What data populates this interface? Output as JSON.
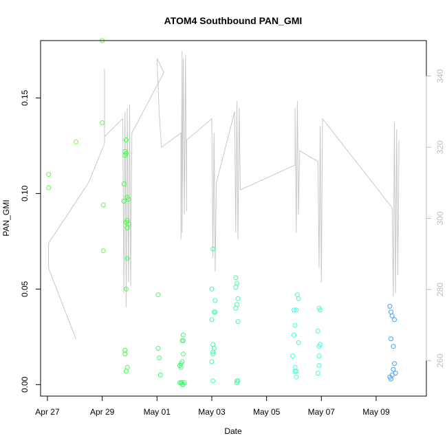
{
  "chart_data": {
    "type": "scatter",
    "title": "ATOM4 Southbound PAN_GMI",
    "xlabel": "Date",
    "ylabel": "PAN_GMI",
    "x_unit": "date",
    "xlim": [
      "2016-04-26T18:00",
      "2016-05-10T20:00"
    ],
    "ylim": [
      -0.006,
      0.18
    ],
    "y2lim": [
      250,
      350
    ],
    "x_ticks": [
      {
        "date": "2016-04-27T00:00",
        "label": "Apr 27"
      },
      {
        "date": "2016-04-29T00:00",
        "label": "Apr 29"
      },
      {
        "date": "2016-05-01T00:00",
        "label": "May 01"
      },
      {
        "date": "2016-05-03T00:00",
        "label": "May 03"
      },
      {
        "date": "2016-05-05T00:00",
        "label": "May 05"
      },
      {
        "date": "2016-05-07T00:00",
        "label": "May 07"
      },
      {
        "date": "2016-05-09T00:00",
        "label": "May 09"
      }
    ],
    "y_ticks": [
      {
        "value": 0.0,
        "label": "0.00"
      },
      {
        "value": 0.05,
        "label": "0.05"
      },
      {
        "value": 0.1,
        "label": "0.10"
      },
      {
        "value": 0.15,
        "label": "0.15"
      }
    ],
    "y2_ticks": [
      {
        "value": 260,
        "label": "260"
      },
      {
        "value": 280,
        "label": "280"
      },
      {
        "value": 300,
        "label": "300"
      },
      {
        "value": 320,
        "label": "320"
      },
      {
        "value": 340,
        "label": "340"
      }
    ],
    "grid": false,
    "colors": {
      "axis": "#000000",
      "secondary_axis": "#bdbdbd",
      "line": "#c8c8c8"
    },
    "series": [
      {
        "type": "scatter",
        "color": "#5cff3c",
        "points": [
          [
            "2016-04-27T01:00",
            0.11
          ],
          [
            "2016-04-27T01:00",
            0.103
          ],
          [
            "2016-04-28T01:00",
            0.127
          ],
          [
            "2016-04-29T00:00",
            0.18
          ],
          [
            "2016-04-29T00:00",
            0.137
          ],
          [
            "2016-04-29T01:00",
            0.094
          ],
          [
            "2016-04-29T01:00",
            0.07
          ]
        ]
      },
      {
        "type": "scatter",
        "color": "#3cff3c",
        "points": [
          [
            "2016-04-29T19:00",
            0.105
          ],
          [
            "2016-04-29T19:00",
            0.096
          ],
          [
            "2016-04-29T20:00",
            0.122
          ],
          [
            "2016-04-29T20:00",
            0.12
          ],
          [
            "2016-04-29T21:00",
            0.128
          ],
          [
            "2016-04-29T21:00",
            0.121
          ],
          [
            "2016-04-29T21:00",
            0.085
          ],
          [
            "2016-04-29T22:00",
            0.098
          ],
          [
            "2016-04-29T22:00",
            0.086
          ],
          [
            "2016-04-29T22:00",
            0.082
          ],
          [
            "2016-04-29T23:00",
            0.097
          ],
          [
            "2016-04-29T23:00",
            0.084
          ],
          [
            "2016-04-29T22:00",
            0.066
          ],
          [
            "2016-04-29T21:00",
            0.05
          ],
          [
            "2016-04-29T20:00",
            0.018
          ],
          [
            "2016-04-29T20:00",
            0.016
          ],
          [
            "2016-04-29T21:00",
            0.007
          ],
          [
            "2016-04-29T22:00",
            0.009
          ]
        ]
      },
      {
        "type": "scatter",
        "color": "#3cff6e",
        "points": [
          [
            "2016-05-01T01:00",
            0.047
          ],
          [
            "2016-05-01T01:00",
            0.019
          ],
          [
            "2016-05-01T02:00",
            0.014
          ],
          [
            "2016-05-01T03:00",
            0.005
          ],
          [
            "2016-05-01T20:00",
            0.01
          ],
          [
            "2016-05-01T21:00",
            0.011
          ],
          [
            "2016-05-01T21:00",
            0.009
          ],
          [
            "2016-05-01T22:00",
            0.012
          ],
          [
            "2016-05-01T22:00",
            0.023
          ],
          [
            "2016-05-01T23:00",
            0.026
          ],
          [
            "2016-05-01T23:00",
            0.023
          ],
          [
            "2016-05-01T23:00",
            0.016
          ],
          [
            "2016-05-01T20:00",
            0.001
          ],
          [
            "2016-05-01T21:00",
            0.001
          ],
          [
            "2016-05-01T22:00",
            0.0
          ],
          [
            "2016-05-01T22:00",
            0.001
          ],
          [
            "2016-05-01T23:00",
            0.0
          ],
          [
            "2016-05-02T00:00",
            0.001
          ]
        ]
      },
      {
        "type": "scatter",
        "color": "#3cffa0",
        "points": [
          [
            "2016-05-03T01:00",
            0.071
          ],
          [
            "2016-05-03T00:00",
            0.05
          ],
          [
            "2016-05-03T03:00",
            0.044
          ],
          [
            "2016-05-03T03:00",
            0.038
          ],
          [
            "2016-05-03T02:00",
            0.038
          ],
          [
            "2016-05-03T00:00",
            0.034
          ],
          [
            "2016-05-03T01:00",
            0.021
          ],
          [
            "2016-05-03T02:00",
            0.019
          ],
          [
            "2016-05-03T01:00",
            0.017
          ],
          [
            "2016-05-03T01:00",
            0.016
          ],
          [
            "2016-05-03T00:00",
            0.012
          ],
          [
            "2016-05-03T01:00",
            0.002
          ],
          [
            "2016-05-03T21:00",
            0.056
          ],
          [
            "2016-05-03T22:00",
            0.053
          ],
          [
            "2016-05-03T21:00",
            0.051
          ],
          [
            "2016-05-03T23:00",
            0.045
          ],
          [
            "2016-05-03T22:00",
            0.042
          ],
          [
            "2016-05-03T21:00",
            0.04
          ],
          [
            "2016-05-03T23:00",
            0.033
          ],
          [
            "2016-05-03T22:00",
            0.002
          ],
          [
            "2016-05-03T23:00",
            0.002
          ],
          [
            "2016-05-03T22:00",
            0.001
          ]
        ]
      },
      {
        "type": "scatter",
        "color": "#3cffd8",
        "points": [
          [
            "2016-05-06T03:00",
            0.047
          ],
          [
            "2016-05-06T04:00",
            0.045
          ],
          [
            "2016-05-06T02:00",
            0.039
          ],
          [
            "2016-05-06T00:00",
            0.039
          ],
          [
            "2016-05-06T01:00",
            0.031
          ],
          [
            "2016-05-06T00:00",
            0.026
          ],
          [
            "2016-05-06T04:00",
            0.022
          ],
          [
            "2016-05-05T23:00",
            0.015
          ],
          [
            "2016-05-06T01:00",
            0.009
          ],
          [
            "2016-05-06T02:00",
            0.007
          ],
          [
            "2016-05-06T01:00",
            0.007
          ],
          [
            "2016-05-06T02:00",
            0.004
          ],
          [
            "2016-05-06T22:00",
            0.04
          ],
          [
            "2016-05-06T23:00",
            0.039
          ],
          [
            "2016-05-06T21:00",
            0.028
          ],
          [
            "2016-05-06T23:00",
            0.021
          ],
          [
            "2016-05-06T22:00",
            0.02
          ],
          [
            "2016-05-06T22:00",
            0.015
          ],
          [
            "2016-05-06T22:00",
            0.01
          ],
          [
            "2016-05-06T21:00",
            0.006
          ]
        ]
      },
      {
        "type": "scatter",
        "color": "#3ca0ff",
        "points": [
          [
            "2016-05-09T12:00",
            0.041
          ],
          [
            "2016-05-09T13:00",
            0.038
          ],
          [
            "2016-05-09T14:00",
            0.036
          ],
          [
            "2016-05-09T16:00",
            0.034
          ],
          [
            "2016-05-09T13:00",
            0.024
          ],
          [
            "2016-05-09T15:00",
            0.02
          ],
          [
            "2016-05-09T16:00",
            0.011
          ],
          [
            "2016-05-09T15:00",
            0.008
          ],
          [
            "2016-05-09T17:00",
            0.006
          ],
          [
            "2016-05-09T14:00",
            0.005
          ],
          [
            "2016-05-09T13:00",
            0.003
          ],
          [
            "2016-05-09T12:00",
            0.004
          ]
        ]
      },
      {
        "type": "line",
        "axis": "secondary",
        "color": "#c8c8c8",
        "points": [
          [
            "2016-04-28T01:00",
            266
          ],
          [
            "2016-04-27T01:00",
            286
          ],
          [
            "2016-04-27T01:00",
            293
          ],
          [
            "2016-04-28T12:00",
            310
          ],
          [
            "2016-04-29T02:00",
            321
          ],
          [
            "2016-04-29T02:00",
            342
          ],
          [
            "2016-04-29T02:00",
            323
          ],
          [
            "2016-04-29T18:00",
            328
          ],
          [
            "2016-04-29T19:00",
            279
          ],
          [
            "2016-04-29T20:00",
            330
          ],
          [
            "2016-04-29T21:00",
            275
          ],
          [
            "2016-04-29T22:00",
            331
          ],
          [
            "2016-04-29T23:00",
            282
          ],
          [
            "2016-04-30T00:00",
            332
          ],
          [
            "2016-04-30T01:00",
            281
          ],
          [
            "2016-04-30T02:00",
            324
          ],
          [
            "2016-05-01T06:00",
            341
          ],
          [
            "2016-05-01T00:00",
            345
          ],
          [
            "2016-05-01T02:00",
            329
          ],
          [
            "2016-05-01T04:00",
            320
          ],
          [
            "2016-05-01T21:00",
            324
          ],
          [
            "2016-05-01T21:00",
            294
          ],
          [
            "2016-05-01T22:00",
            347
          ],
          [
            "2016-05-01T22:00",
            296
          ],
          [
            "2016-05-01T23:00",
            345
          ],
          [
            "2016-05-02T00:00",
            301
          ],
          [
            "2016-05-02T01:00",
            346
          ],
          [
            "2016-05-02T02:00",
            302
          ],
          [
            "2016-05-02T02:00",
            322
          ],
          [
            "2016-05-03T00:00",
            328
          ],
          [
            "2016-05-03T01:00",
            289
          ],
          [
            "2016-05-03T02:00",
            324
          ],
          [
            "2016-05-03T03:00",
            285
          ],
          [
            "2016-05-03T04:00",
            310
          ],
          [
            "2016-05-03T20:00",
            330
          ],
          [
            "2016-05-03T21:00",
            296
          ],
          [
            "2016-05-03T22:00",
            333
          ],
          [
            "2016-05-03T23:00",
            294
          ],
          [
            "2016-05-04T00:00",
            331
          ],
          [
            "2016-05-04T01:00",
            308
          ],
          [
            "2016-05-06T01:00",
            315
          ],
          [
            "2016-05-06T01:00",
            331
          ],
          [
            "2016-05-06T02:00",
            296
          ],
          [
            "2016-05-06T03:00",
            333
          ],
          [
            "2016-05-06T04:00",
            301
          ],
          [
            "2016-05-06T05:00",
            319
          ],
          [
            "2016-05-06T21:00",
            316
          ],
          [
            "2016-05-06T22:00",
            286
          ],
          [
            "2016-05-06T23:00",
            326
          ],
          [
            "2016-05-07T00:00",
            282
          ],
          [
            "2016-05-07T01:00",
            328
          ],
          [
            "2016-05-09T14:00",
            303
          ],
          [
            "2016-05-09T15:00",
            278
          ],
          [
            "2016-05-09T16:00",
            327
          ],
          [
            "2016-05-09T17:00",
            279
          ],
          [
            "2016-05-09T18:00",
            325
          ],
          [
            "2016-05-09T19:00",
            284
          ],
          [
            "2016-05-09T20:00",
            322
          ]
        ]
      }
    ]
  }
}
